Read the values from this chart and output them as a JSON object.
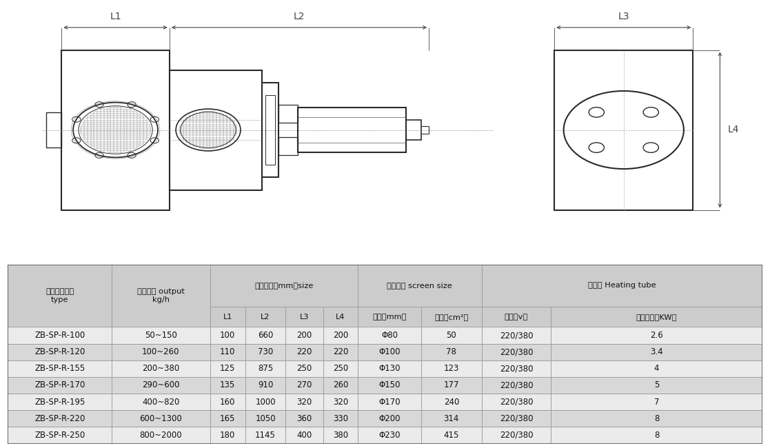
{
  "table_data": [
    [
      "ZB-SP-R-100",
      "50~150",
      "100",
      "660",
      "200",
      "200",
      "Φ80",
      "50",
      "220/380",
      "2.6"
    ],
    [
      "ZB-SP-R-120",
      "100~260",
      "110",
      "730",
      "220",
      "220",
      "Φ100",
      "78",
      "220/380",
      "3.4"
    ],
    [
      "ZB-SP-R-155",
      "200~380",
      "125",
      "875",
      "250",
      "250",
      "Φ130",
      "123",
      "220/380",
      "4"
    ],
    [
      "ZB-SP-R-170",
      "290~600",
      "135",
      "910",
      "270",
      "260",
      "Φ150",
      "177",
      "220/380",
      "5"
    ],
    [
      "ZB-SP-R-195",
      "400~820",
      "160",
      "1000",
      "320",
      "320",
      "Φ170",
      "240",
      "220/380",
      "7"
    ],
    [
      "ZB-SP-R-220",
      "600~1300",
      "165",
      "1050",
      "360",
      "330",
      "Φ200",
      "314",
      "220/380",
      "8"
    ],
    [
      "ZB-SP-R-250",
      "800~2000",
      "180",
      "1145",
      "400",
      "380",
      "Φ230",
      "415",
      "220/380",
      "8"
    ]
  ],
  "header_bg": "#cccccc",
  "even_bg": "#ebebeb",
  "odd_bg": "#d8d8d8",
  "border_color": "#999999",
  "text_color": "#111111",
  "line_color": "#2a2a2a",
  "dim_color": "#444444"
}
